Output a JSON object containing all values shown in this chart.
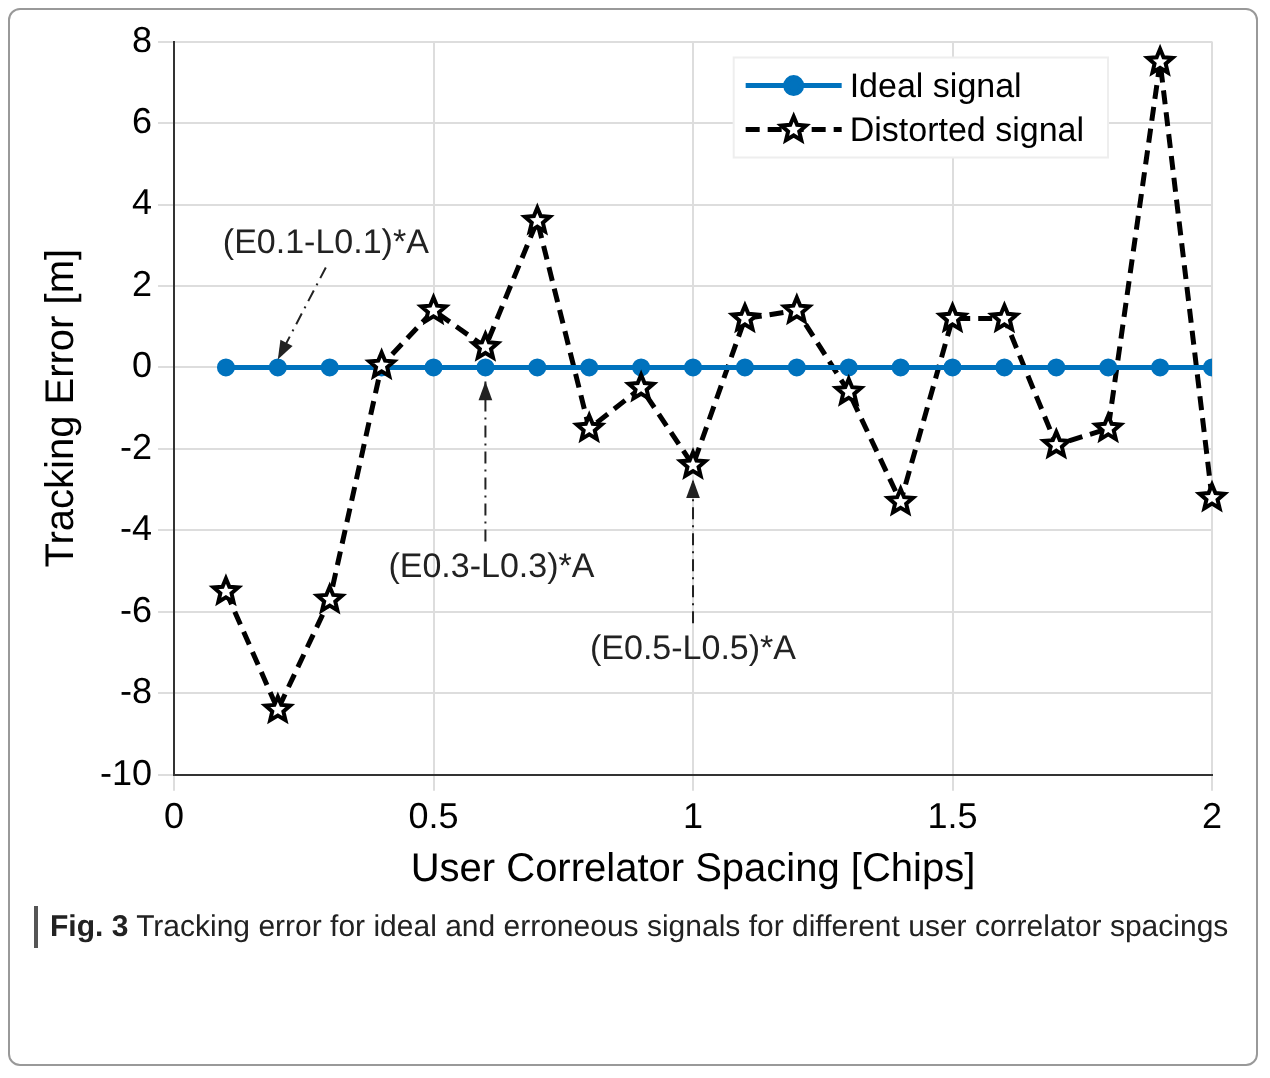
{
  "chart_data": {
    "type": "line",
    "xlabel": "User Correlator Spacing [Chips]",
    "ylabel": "Tracking Error [m]",
    "x": [
      0.1,
      0.2,
      0.3,
      0.4,
      0.5,
      0.6,
      0.7,
      0.8,
      0.9,
      1.0,
      1.1,
      1.2,
      1.3,
      1.4,
      1.5,
      1.6,
      1.7,
      1.8,
      1.9,
      2.0
    ],
    "series": [
      {
        "name": "Ideal signal",
        "color": "#0072bd",
        "marker": "circle",
        "line_style": "solid",
        "values": [
          0,
          0,
          0,
          0,
          0,
          0,
          0,
          0,
          0,
          0,
          0,
          0,
          0,
          0,
          0,
          0,
          0,
          0,
          0,
          0
        ]
      },
      {
        "name": "Distorted signal",
        "color": "#000000",
        "marker": "star",
        "line_style": "dashed",
        "values": [
          -5.5,
          -8.4,
          -5.7,
          0.05,
          1.4,
          0.5,
          3.6,
          -1.5,
          -0.5,
          -2.4,
          1.2,
          1.4,
          -0.6,
          -3.3,
          1.2,
          1.2,
          -1.9,
          -1.5,
          7.5,
          -3.2
        ]
      }
    ],
    "xlim": [
      0,
      2
    ],
    "xticks": [
      0,
      0.5,
      1,
      1.5,
      2
    ],
    "ylim": [
      -10,
      8
    ],
    "yticks": [
      -10,
      -8,
      -6,
      -4,
      -2,
      0,
      2,
      4,
      6,
      8
    ],
    "grid": true,
    "legend": "top right",
    "annotations": [
      {
        "text": "(E0.1-L0.1)*A",
        "x": 0.2,
        "y": 0
      },
      {
        "text": "(E0.3-L0.3)*A",
        "x": 0.6,
        "y": 0
      },
      {
        "text": "(E0.5-L0.5)*A",
        "x": 1.0,
        "y": -2.4
      },
      "Fig. 3 Tracking error for ideal and erroneous signals for different user correlator spacings"
    ]
  }
}
